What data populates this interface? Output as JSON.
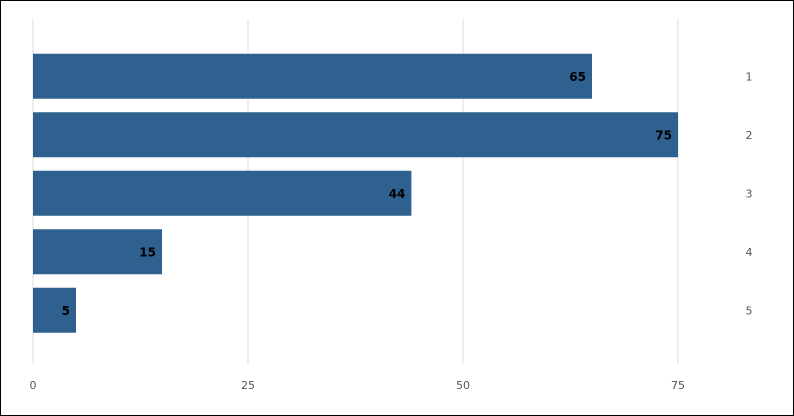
{
  "chart_data": {
    "type": "bar",
    "orientation": "horizontal",
    "categories": [
      "1",
      "2",
      "3",
      "4",
      "5"
    ],
    "values": [
      65,
      75,
      44,
      15,
      5
    ],
    "data_labels": [
      "65",
      "75",
      "44",
      "15",
      "5"
    ],
    "xlim": [
      0,
      80
    ],
    "x_ticks": [
      0,
      25,
      50,
      75
    ],
    "x_tick_labels": [
      "0",
      "25",
      "50",
      "75"
    ],
    "title": "",
    "xlabel": "",
    "ylabel": "",
    "grid": "vertical",
    "legend": "none",
    "colors": {
      "bar": "#2e6190",
      "grid": "#dddddd",
      "frame": "#000000"
    }
  }
}
